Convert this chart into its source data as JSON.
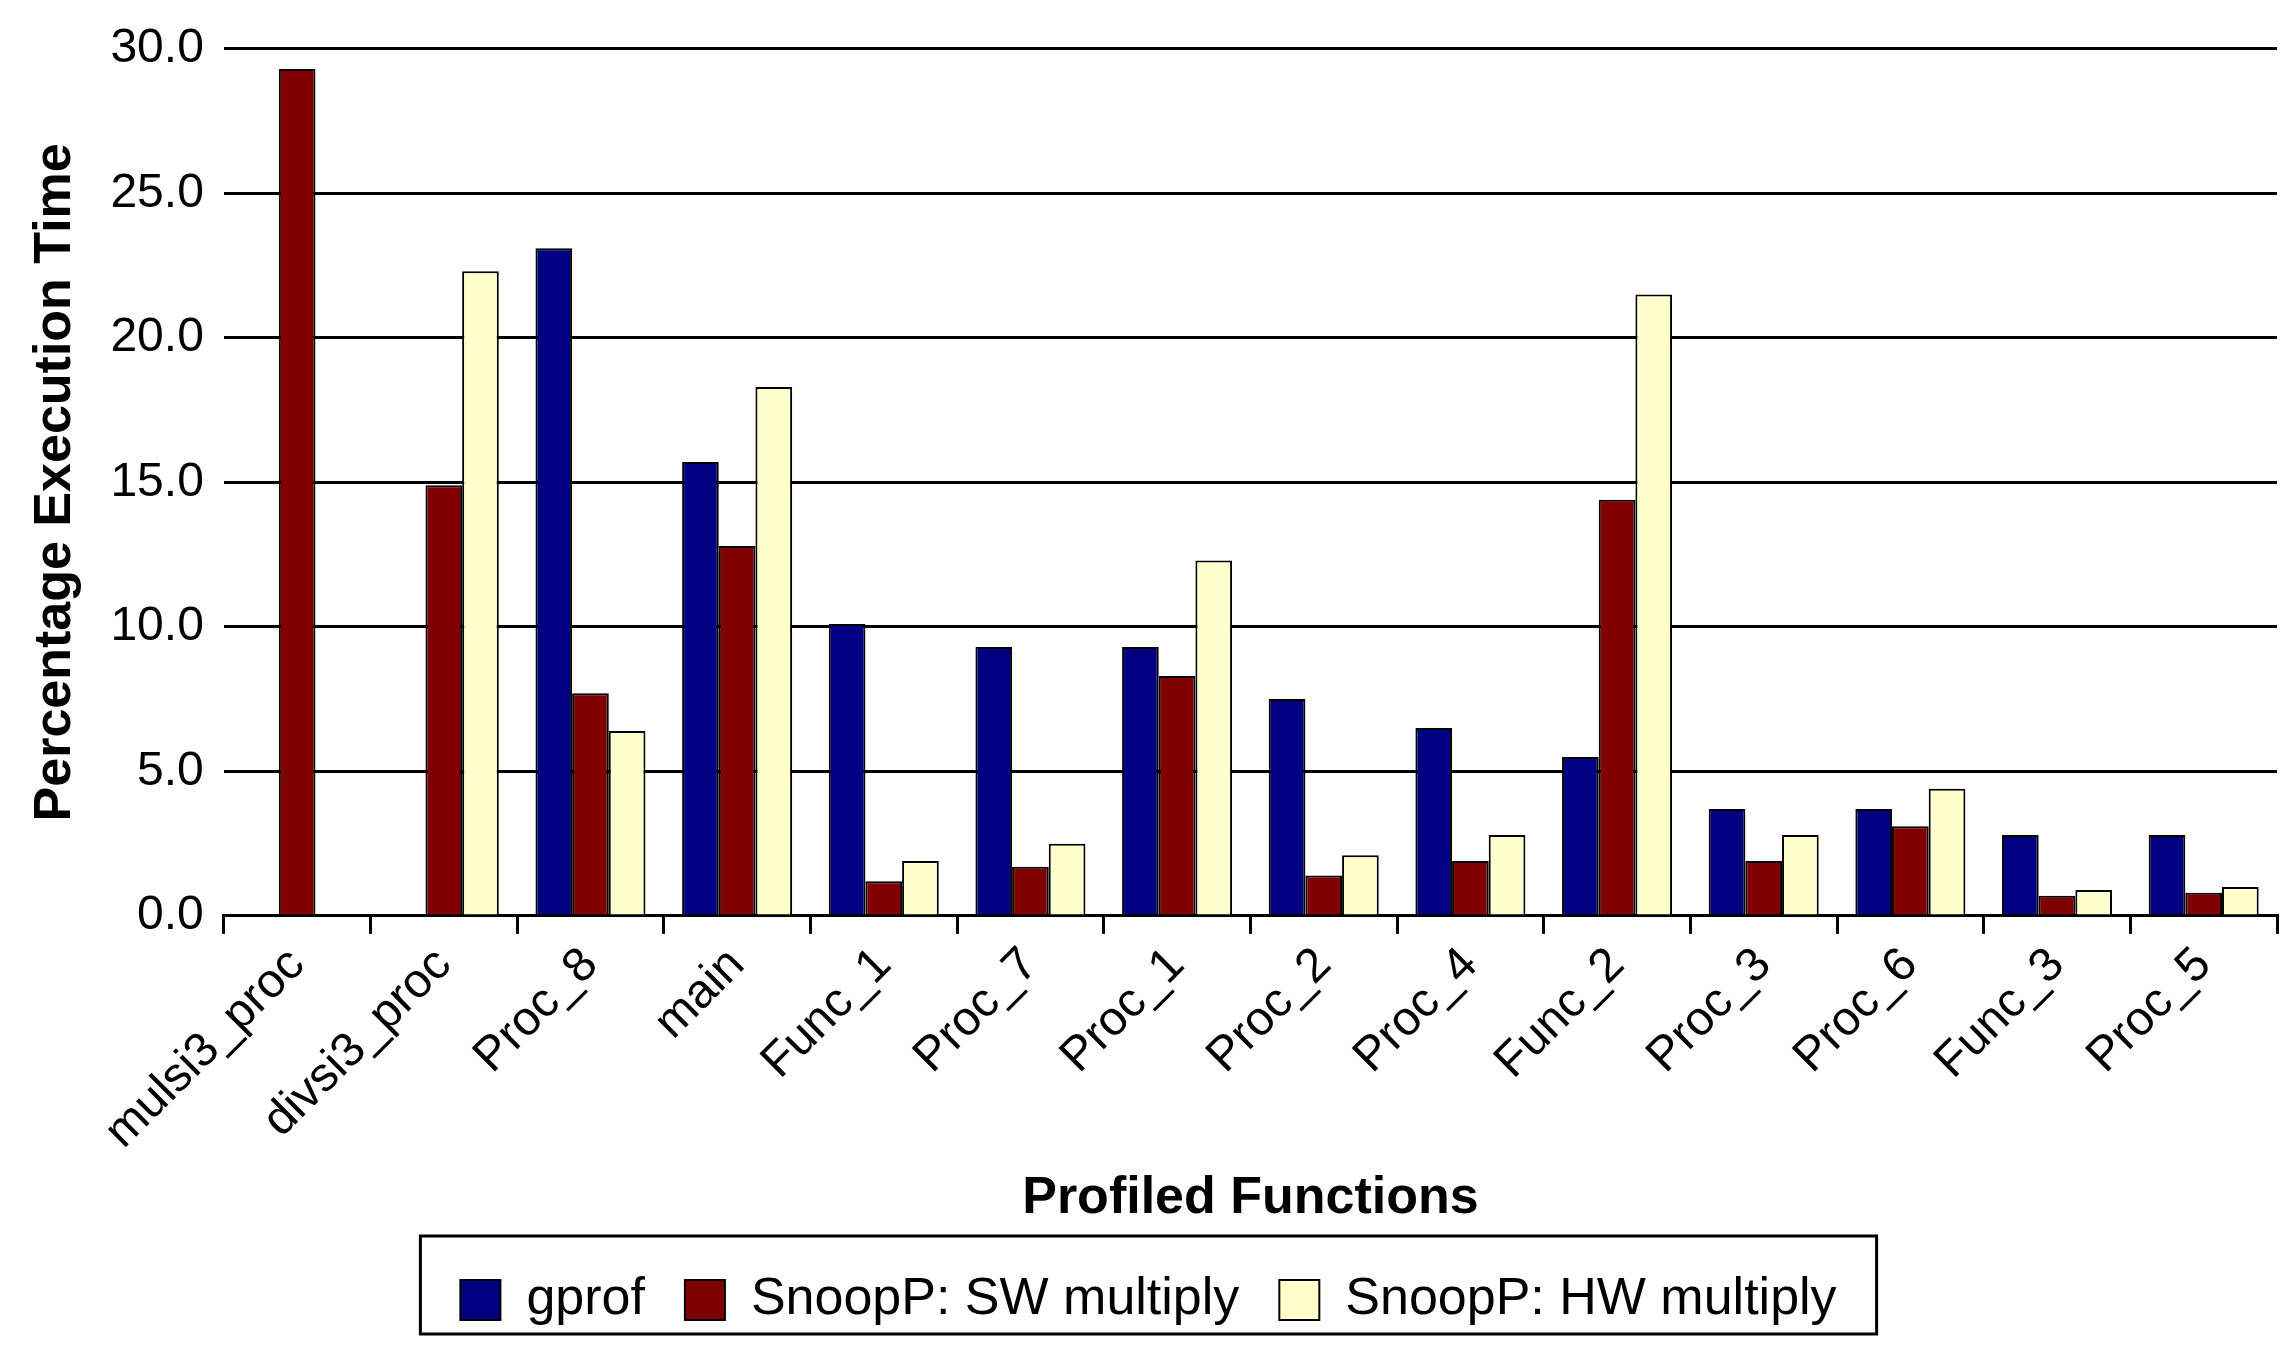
{
  "chart_data": {
    "type": "bar",
    "xlabel": "Profiled Functions",
    "ylabel": "Percentage Execution Time",
    "categories": [
      "mulsi3_proc",
      "divsi3_proc",
      "Proc_8",
      "main",
      "Func_1",
      "Proc_7",
      "Proc_1",
      "Proc_2",
      "Proc_4",
      "Func_2",
      "Proc_3",
      "Proc_6",
      "Func_3",
      "Proc_5"
    ],
    "series": [
      {
        "name": "gprof",
        "color": "#000080",
        "values": [
          null,
          null,
          23.1,
          15.7,
          10.1,
          9.3,
          9.3,
          7.5,
          6.5,
          5.5,
          3.7,
          3.7,
          2.8,
          2.8
        ]
      },
      {
        "name": "SnoopP: SW multiply",
        "color": "#800000",
        "values": [
          29.3,
          14.9,
          7.7,
          12.8,
          1.2,
          1.7,
          8.3,
          1.4,
          1.9,
          14.4,
          1.9,
          3.1,
          0.7,
          0.8
        ]
      },
      {
        "name": "SnoopP: HW multiply",
        "color": "#ffffcc",
        "values": [
          null,
          22.3,
          6.4,
          18.3,
          1.9,
          2.5,
          12.3,
          2.1,
          2.8,
          21.5,
          2.8,
          4.4,
          0.9,
          1.0
        ]
      }
    ],
    "ylim": [
      0,
      30
    ],
    "yticks": [
      {
        "value": 0,
        "label": "0.0"
      },
      {
        "value": 5,
        "label": "5.0"
      },
      {
        "value": 10,
        "label": "10.0"
      },
      {
        "value": 15,
        "label": "15.0"
      },
      {
        "value": 20,
        "label": "20.0"
      },
      {
        "value": 25,
        "label": "25.0"
      },
      {
        "value": 30,
        "label": "30.0"
      }
    ],
    "grid": "y",
    "legend": "bottom"
  }
}
